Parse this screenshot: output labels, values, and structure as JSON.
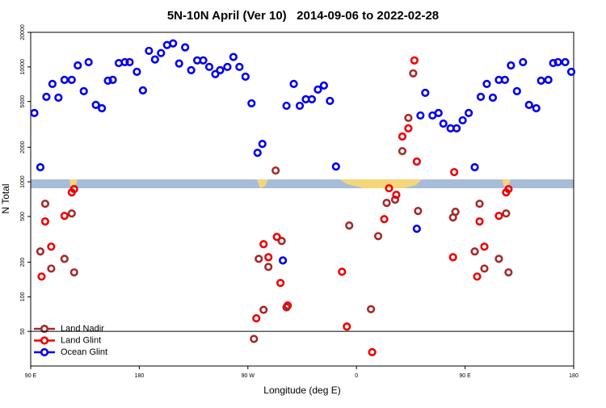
{
  "chart_data": {
    "type": "scatter",
    "title": "5N-10N April (Ver 10)   2014-09-06 to 2022-02-28",
    "x_label": "Longitude (deg E)",
    "y_label": "N Total",
    "ylog": true,
    "xlim": [
      90,
      540
    ],
    "xticks": [
      {
        "value": 90,
        "label": "90 E"
      },
      180,
      {
        "value": 270,
        "label": "90 W"
      },
      {
        "value": 360,
        "label": "0"
      },
      {
        "value": 450,
        "label": "90 E"
      },
      {
        "value": 540,
        "label": "180"
      }
    ],
    "ylim": [
      25,
      20000
    ],
    "yticks": [
      50,
      100,
      200,
      500,
      1000,
      2000,
      5000,
      10000,
      20000
    ],
    "legend": "lower left",
    "series": [
      {
        "name": "Land Nadir",
        "color": "#a52a2a",
        "x": [
          102,
          98,
          107,
          124,
          118,
          126,
          293,
          279,
          287,
          298,
          302,
          283,
          275,
          354,
          372,
          378,
          385,
          392,
          398,
          403,
          407,
          411,
          440,
          442,
          462,
          458,
          466,
          484,
          478,
          486
        ],
        "values": [
          645,
          248,
          176,
          531,
          214,
          163,
          1255,
          214,
          182,
          306,
          81,
          77,
          43,
          417,
          78,
          337,
          656,
          700,
          1850,
          3600,
          8790,
          558,
          490,
          549,
          645,
          248,
          176,
          531,
          214,
          163
        ]
      },
      {
        "name": "Land Glint",
        "color": "#ee0000",
        "x": [
          102,
          99,
          107,
          118,
          124,
          126,
          283,
          287,
          294,
          297,
          303,
          277,
          348,
          352,
          373,
          383,
          387,
          393,
          398,
          403,
          408,
          410,
          440,
          441,
          462,
          460,
          466,
          478,
          484,
          486
        ],
        "values": [
          452,
          150,
          273,
          506,
          810,
          865,
          287,
          221,
          332,
          132,
          84,
          65,
          165,
          55,
          33,
          474,
          879,
          771,
          2480,
          2920,
          11400,
          1500,
          221,
          1215,
          452,
          150,
          273,
          506,
          810,
          865
        ]
      },
      {
        "name": "Ocean Glint",
        "color": "#0000ee",
        "x": [
          93,
          98,
          103,
          108,
          113,
          118,
          124,
          129,
          134,
          138,
          144,
          149,
          154,
          158,
          163,
          168,
          172,
          178,
          183,
          188,
          193,
          198,
          203,
          208,
          213,
          218,
          223,
          228,
          233,
          238,
          243,
          247,
          253,
          258,
          263,
          268,
          273,
          278,
          282,
          299,
          302,
          308,
          313,
          318,
          323,
          328,
          333,
          338,
          343,
          410,
          413,
          417,
          423,
          428,
          432,
          438,
          443,
          448,
          453,
          458,
          463,
          468,
          473,
          478,
          483,
          488,
          493,
          498,
          503,
          509,
          513,
          519,
          523,
          527,
          533,
          538
        ],
        "values": [
          3970,
          1340,
          5490,
          7110,
          5400,
          7710,
          7710,
          10300,
          6150,
          11000,
          4670,
          4370,
          7590,
          7710,
          10800,
          11000,
          11000,
          9070,
          6250,
          13800,
          11600,
          13200,
          15500,
          16000,
          10700,
          14800,
          9370,
          11400,
          11400,
          10000,
          8650,
          9370,
          10000,
          12200,
          10000,
          8230,
          4820,
          1790,
          2140,
          207,
          4590,
          7110,
          4590,
          5230,
          5230,
          6350,
          6890,
          5060,
          1360,
          391,
          3780,
          5950,
          3780,
          3970,
          3210,
          2920,
          2920,
          3430,
          3970,
          1340,
          5490,
          7110,
          5400,
          7710,
          7710,
          10300,
          6150,
          11000,
          4670,
          4370,
          7590,
          7710,
          10800,
          11000,
          11000,
          9070
        ]
      }
    ]
  }
}
